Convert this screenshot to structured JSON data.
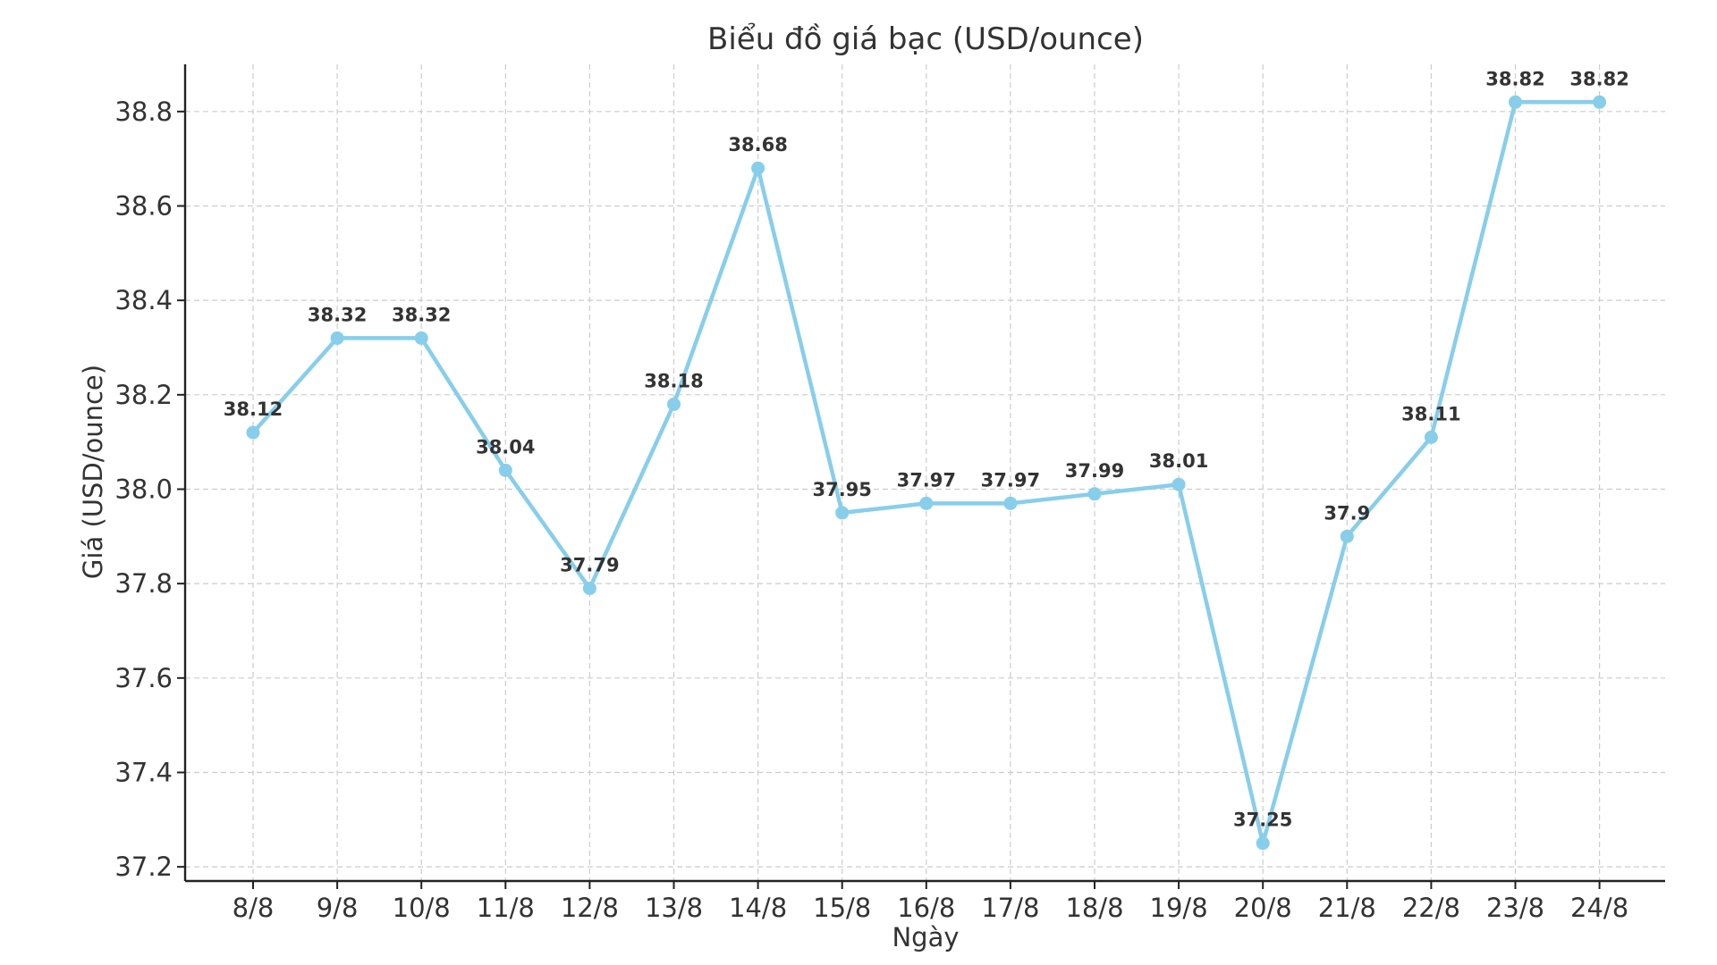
{
  "chart_data": {
    "type": "line",
    "title": "Biểu đồ giá bạc (USD/ounce)",
    "xlabel": "Ngày",
    "ylabel": "Giá (USD/ounce)",
    "categories": [
      "8/8",
      "9/8",
      "10/8",
      "11/8",
      "12/8",
      "13/8",
      "14/8",
      "15/8",
      "16/8",
      "17/8",
      "18/8",
      "19/8",
      "20/8",
      "21/8",
      "22/8",
      "23/8",
      "24/8"
    ],
    "series": [
      {
        "values": [
          38.12,
          38.32,
          38.32,
          38.04,
          37.79,
          38.18,
          38.68,
          37.95,
          37.97,
          37.97,
          37.99,
          38.01,
          37.25,
          37.9,
          38.11,
          38.82,
          38.82
        ],
        "labels": [
          "38.12",
          "38.32",
          "38.32",
          "38.04",
          "37.79",
          "38.18",
          "38.68",
          "37.95",
          "37.97",
          "37.97",
          "37.99",
          "38.01",
          "37.25",
          "37.9",
          "38.11",
          "38.82",
          "38.82"
        ],
        "color": "#87CEEB"
      }
    ],
    "yticks": [
      "37.2",
      "37.4",
      "37.6",
      "37.8",
      "38.0",
      "38.2",
      "38.4",
      "38.6",
      "38.8"
    ],
    "ylim": [
      37.17,
      38.9
    ],
    "grid": true,
    "marker": "circle"
  }
}
